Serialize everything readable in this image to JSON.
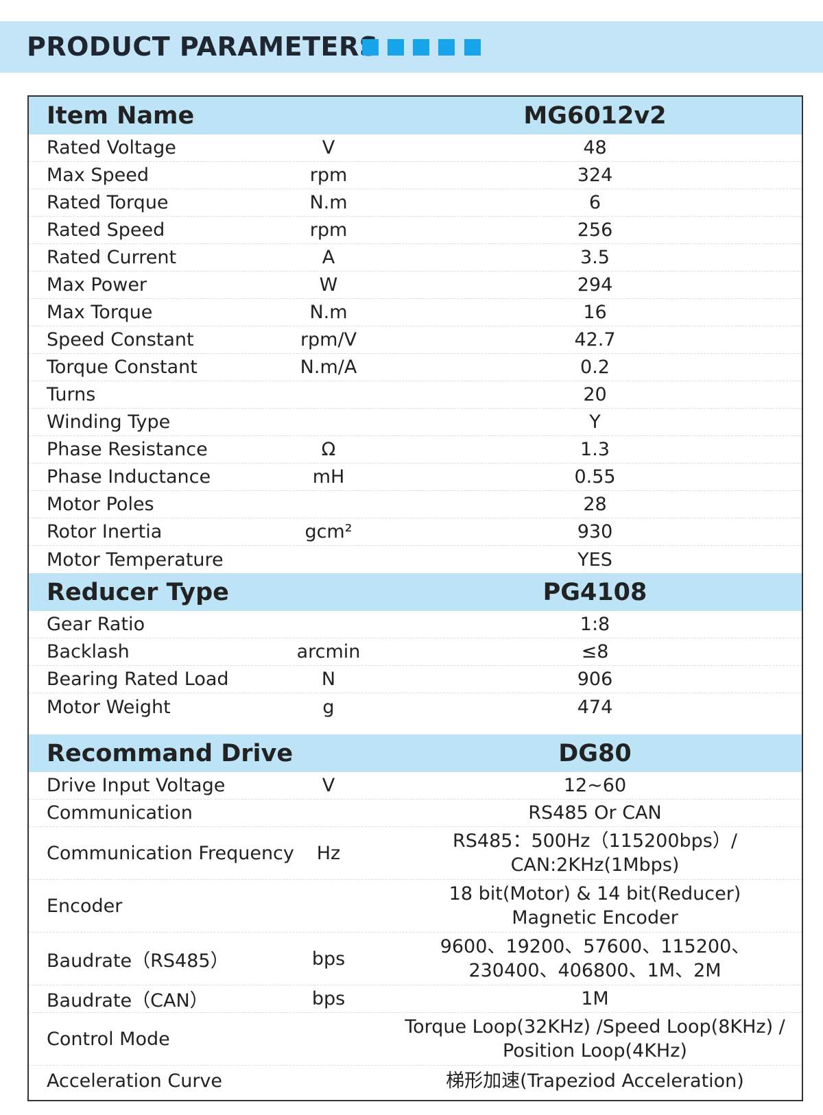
{
  "header": {
    "title": "PRODUCT PARAMETERS"
  },
  "sections": [
    {
      "title": "Item Name",
      "value": "MG6012v2",
      "rows": [
        {
          "name": "Rated Voltage",
          "unit": "V",
          "value": "48"
        },
        {
          "name": "Max Speed",
          "unit": "rpm",
          "value": "324"
        },
        {
          "name": "Rated Torque",
          "unit": "N.m",
          "value": "6"
        },
        {
          "name": "Rated Speed",
          "unit": "rpm",
          "value": "256"
        },
        {
          "name": "Rated Current",
          "unit": "A",
          "value": "3.5"
        },
        {
          "name": "Max Power",
          "unit": "W",
          "value": "294"
        },
        {
          "name": "Max Torque",
          "unit": "N.m",
          "value": "16"
        },
        {
          "name": "Speed Constant",
          "unit": "rpm/V",
          "value": "42.7"
        },
        {
          "name": "Torque Constant",
          "unit": "N.m/A",
          "value": "0.2"
        },
        {
          "name": "Turns",
          "value": "20"
        },
        {
          "name": "Winding Type",
          "value": "Y"
        },
        {
          "name": "Phase Resistance",
          "unit": "Ω",
          "value": "1.3"
        },
        {
          "name": "Phase Inductance",
          "unit": "mH",
          "value": "0.55"
        },
        {
          "name": "Motor Poles",
          "value": "28"
        },
        {
          "name": "Rotor Inertia",
          "unit": "gcm²",
          "value": "930"
        },
        {
          "name": "Motor Temperature",
          "value": "YES"
        }
      ]
    },
    {
      "title": "Reducer Type",
      "value": "PG4108",
      "rows": [
        {
          "name": "Gear Ratio",
          "value": "1:8"
        },
        {
          "name": "Backlash",
          "unit": "arcmin",
          "value": "≤8"
        },
        {
          "name": "Bearing Rated Load",
          "unit": "N",
          "value": "906"
        },
        {
          "name": "Motor Weight",
          "unit": "g",
          "value": "474"
        }
      ]
    },
    {
      "title": "Recommand Drive",
      "value": "DG80",
      "rows": [
        {
          "name": "Drive Input Voltage",
          "unit": "V",
          "value": "12~60"
        },
        {
          "name": "Communication",
          "value": "RS485 Or CAN"
        },
        {
          "name": "Communication Frequency",
          "unit": "Hz",
          "value": [
            "RS485：500Hz（115200bps）/",
            "CAN:2KHz(1Mbps)"
          ]
        },
        {
          "name": "Encoder",
          "value": [
            "18 bit(Motor) & 14 bit(Reducer)",
            "Magnetic Encoder"
          ]
        },
        {
          "name": "Baudrate（RS485）",
          "unit": "bps",
          "value": [
            "9600、19200、57600、115200、",
            "230400、406800、1M、2M"
          ]
        },
        {
          "name": "Baudrate（CAN）",
          "unit": "bps",
          "value": "1M"
        },
        {
          "name": "Control Mode",
          "value": [
            "Torque Loop(32KHz) /Speed Loop(8KHz) /",
            "Position Loop(4KHz)"
          ]
        },
        {
          "name": "Acceleration Curve",
          "value": "梯形加速(Trapeziod Acceleration)"
        }
      ]
    }
  ]
}
